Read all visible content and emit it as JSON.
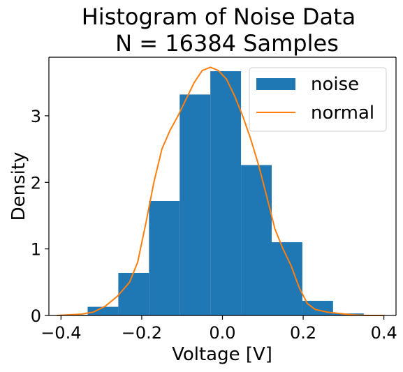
{
  "chart_data": {
    "type": "bar",
    "title": "Histogram of Noise Data",
    "subtitle": "N = 16384 Samples",
    "xlabel": "Voltage [V]",
    "ylabel": "Density",
    "xlim": [
      -0.43,
      0.43
    ],
    "ylim": [
      0,
      3.88
    ],
    "x_ticks": [
      -0.4,
      -0.2,
      0.0,
      0.2,
      0.4
    ],
    "x_tick_labels": [
      "−0.4",
      "−0.2",
      "0.0",
      "0.2",
      "0.4"
    ],
    "y_ticks": [
      0,
      1,
      2,
      3
    ],
    "y_tick_labels": [
      "0",
      "1",
      "2",
      "3"
    ],
    "grid": false,
    "legend_position": "top-right",
    "series": [
      {
        "name": "noise",
        "kind": "histogram",
        "color": "#1f77b4",
        "bins": [
          {
            "x0": -0.41,
            "x1": -0.334,
            "density": 0.01
          },
          {
            "x0": -0.334,
            "x1": -0.258,
            "density": 0.13
          },
          {
            "x0": -0.258,
            "x1": -0.182,
            "density": 0.64
          },
          {
            "x0": -0.182,
            "x1": -0.106,
            "density": 1.72
          },
          {
            "x0": -0.106,
            "x1": -0.03,
            "density": 3.32
          },
          {
            "x0": -0.03,
            "x1": 0.046,
            "density": 3.67
          },
          {
            "x0": 0.046,
            "x1": 0.122,
            "density": 2.26
          },
          {
            "x0": 0.122,
            "x1": 0.198,
            "density": 1.1
          },
          {
            "x0": 0.198,
            "x1": 0.274,
            "density": 0.22
          },
          {
            "x0": 0.274,
            "x1": 0.35,
            "density": 0.03
          }
        ]
      },
      {
        "name": "normal",
        "kind": "line",
        "color": "#ff7f0e",
        "points": [
          [
            -0.41,
            0.0
          ],
          [
            -0.38,
            0.01
          ],
          [
            -0.35,
            0.02
          ],
          [
            -0.32,
            0.05
          ],
          [
            -0.29,
            0.14
          ],
          [
            -0.26,
            0.29
          ],
          [
            -0.23,
            0.5
          ],
          [
            -0.21,
            0.8
          ],
          [
            -0.19,
            1.38
          ],
          [
            -0.17,
            2.0
          ],
          [
            -0.15,
            2.5
          ],
          [
            -0.13,
            2.78
          ],
          [
            -0.11,
            3.0
          ],
          [
            -0.09,
            3.25
          ],
          [
            -0.07,
            3.5
          ],
          [
            -0.05,
            3.68
          ],
          [
            -0.03,
            3.73
          ],
          [
            -0.01,
            3.68
          ],
          [
            0.01,
            3.55
          ],
          [
            0.03,
            3.3
          ],
          [
            0.05,
            3.0
          ],
          [
            0.07,
            2.65
          ],
          [
            0.09,
            2.25
          ],
          [
            0.11,
            1.78
          ],
          [
            0.13,
            1.3
          ],
          [
            0.15,
            1.0
          ],
          [
            0.17,
            0.75
          ],
          [
            0.19,
            0.42
          ],
          [
            0.21,
            0.18
          ],
          [
            0.23,
            0.09
          ],
          [
            0.26,
            0.05
          ],
          [
            0.29,
            0.03
          ],
          [
            0.32,
            0.01
          ],
          [
            0.36,
            0.0
          ],
          [
            0.4,
            0.0
          ]
        ]
      }
    ]
  }
}
